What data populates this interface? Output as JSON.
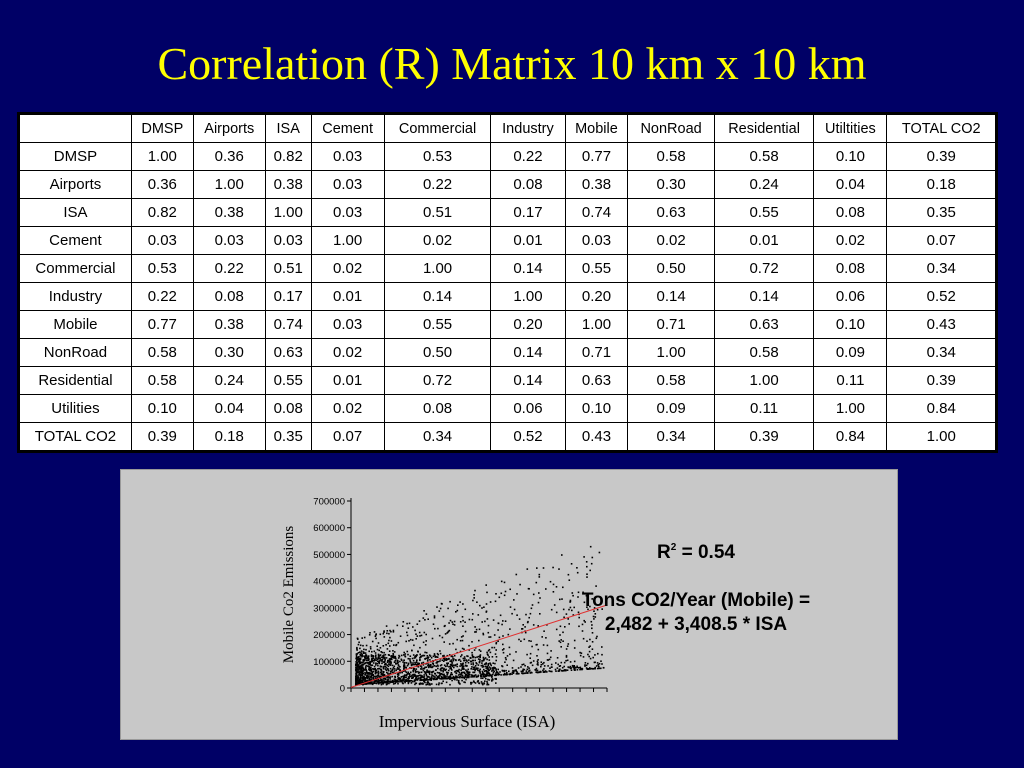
{
  "title": "Correlation (R) Matrix 10 km x 10 km",
  "matrix": {
    "column_headers": [
      "",
      "DMSP",
      "Airports",
      "ISA",
      "Cement",
      "Commercial",
      "Industry",
      "Mobile",
      "NonRoad",
      "Residential",
      "Utiltities",
      "TOTAL CO2"
    ],
    "rows": [
      {
        "label": "DMSP",
        "values": [
          "1.00",
          "0.36",
          "0.82",
          "0.03",
          "0.53",
          "0.22",
          "0.77",
          "0.58",
          "0.58",
          "0.10",
          "0.39"
        ]
      },
      {
        "label": "Airports",
        "values": [
          "0.36",
          "1.00",
          "0.38",
          "0.03",
          "0.22",
          "0.08",
          "0.38",
          "0.30",
          "0.24",
          "0.04",
          "0.18"
        ]
      },
      {
        "label": "ISA",
        "values": [
          "0.82",
          "0.38",
          "1.00",
          "0.03",
          "0.51",
          "0.17",
          "0.74",
          "0.63",
          "0.55",
          "0.08",
          "0.35"
        ]
      },
      {
        "label": "Cement",
        "values": [
          "0.03",
          "0.03",
          "0.03",
          "1.00",
          "0.02",
          "0.01",
          "0.03",
          "0.02",
          "0.01",
          "0.02",
          "0.07"
        ]
      },
      {
        "label": "Commercial",
        "values": [
          "0.53",
          "0.22",
          "0.51",
          "0.02",
          "1.00",
          "0.14",
          "0.55",
          "0.50",
          "0.72",
          "0.08",
          "0.34"
        ]
      },
      {
        "label": "Industry",
        "values": [
          "0.22",
          "0.08",
          "0.17",
          "0.01",
          "0.14",
          "1.00",
          "0.20",
          "0.14",
          "0.14",
          "0.06",
          "0.52"
        ]
      },
      {
        "label": "Mobile",
        "values": [
          "0.77",
          "0.38",
          "0.74",
          "0.03",
          "0.55",
          "0.20",
          "1.00",
          "0.71",
          "0.63",
          "0.10",
          "0.43"
        ]
      },
      {
        "label": "NonRoad",
        "values": [
          "0.58",
          "0.30",
          "0.63",
          "0.02",
          "0.50",
          "0.14",
          "0.71",
          "1.00",
          "0.58",
          "0.09",
          "0.34"
        ]
      },
      {
        "label": "Residential",
        "values": [
          "0.58",
          "0.24",
          "0.55",
          "0.01",
          "0.72",
          "0.14",
          "0.63",
          "0.58",
          "1.00",
          "0.11",
          "0.39"
        ]
      },
      {
        "label": "Utilities",
        "values": [
          "0.10",
          "0.04",
          "0.08",
          "0.02",
          "0.08",
          "0.06",
          "0.10",
          "0.09",
          "0.11",
          "1.00",
          "0.84"
        ]
      },
      {
        "label": "TOTAL CO2",
        "values": [
          "0.39",
          "0.18",
          "0.35",
          "0.07",
          "0.34",
          "0.52",
          "0.43",
          "0.34",
          "0.39",
          "0.84",
          "1.00"
        ]
      }
    ]
  },
  "chart_data": {
    "type": "scatter",
    "title": "",
    "xlabel": "Impervious Surface (ISA)",
    "ylabel": "Mobile Co2 Emissions",
    "yticks": [
      "700000",
      "600000",
      "500000",
      "400000",
      "300000",
      "200000",
      "100000",
      "0"
    ],
    "ylim": [
      0,
      700000
    ],
    "grid": false,
    "regression": {
      "intercept": 2482,
      "slope": 3408.5
    },
    "point_color": "#000000",
    "line_color": "#e03030"
  },
  "stats": {
    "r2_label": "R",
    "r2_sup": "2",
    "r2_value": " = 0.54",
    "equation_line1": "Tons CO2/Year (Mobile) =",
    "equation_line2": "2,482 + 3,408.5 * ISA"
  },
  "colors": {
    "background": "#000066",
    "title": "#ffff00",
    "panel": "#c8c8c8"
  }
}
